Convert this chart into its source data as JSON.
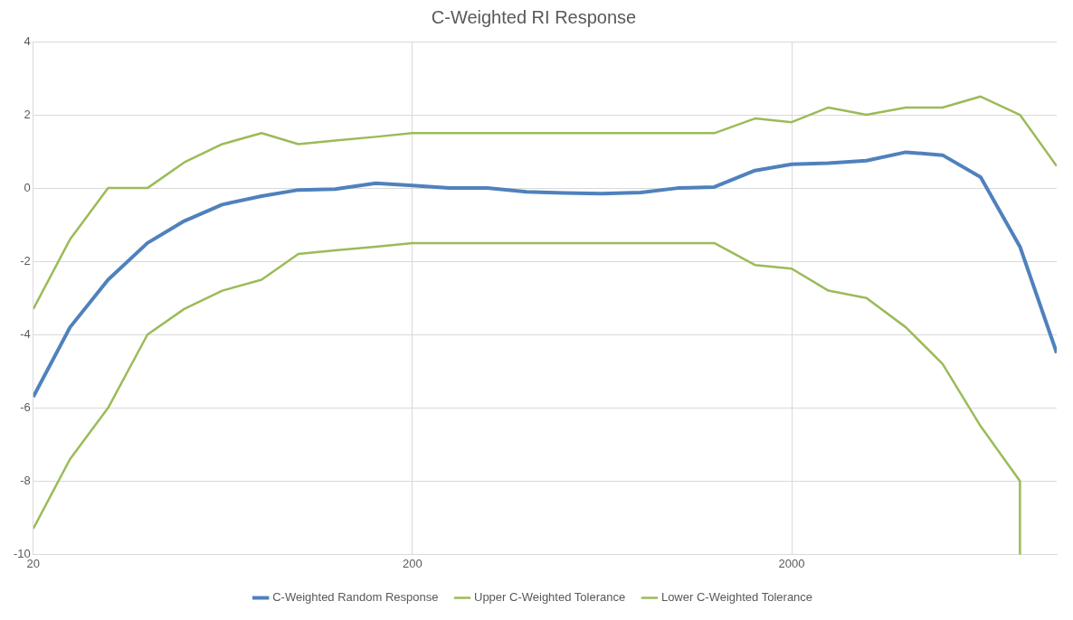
{
  "chart_data": {
    "type": "line",
    "title": "C-Weighted RI Response",
    "log": "x",
    "grid": true,
    "legend": "bottom",
    "marker": "none",
    "line_style": "solid",
    "x": [
      20,
      25,
      31.5,
      40,
      50,
      63,
      80,
      100,
      125,
      160,
      200,
      250,
      315,
      400,
      500,
      630,
      800,
      1000,
      1250,
      1600,
      2000,
      2500,
      3150,
      4000,
      5000,
      6300,
      8000,
      10000
    ],
    "xlim": [
      20,
      10000
    ],
    "xticks": [
      20,
      200,
      2000
    ],
    "ylim": [
      -10,
      4
    ],
    "yticks": [
      -10,
      -8,
      -6,
      -4,
      -2,
      0,
      2,
      4
    ],
    "series": [
      {
        "name": "C-Weighted Random Response",
        "color": "#4f81bd",
        "values": [
          -5.7,
          -3.8,
          -2.5,
          -1.5,
          -0.9,
          -0.45,
          -0.22,
          -0.05,
          -0.03,
          0.13,
          0.07,
          0,
          0,
          -0.1,
          -0.13,
          -0.15,
          -0.12,
          0,
          0.03,
          0.48,
          0.65,
          0.68,
          0.75,
          0.98,
          0.9,
          0.3,
          -1.6,
          -4.5
        ]
      },
      {
        "name": "Upper C-Weighted Tolerance",
        "color": "#9bbb59",
        "values": [
          -3.3,
          -1.4,
          0,
          0,
          0.7,
          1.2,
          1.5,
          1.2,
          1.3,
          1.4,
          1.5,
          1.5,
          1.5,
          1.5,
          1.5,
          1.5,
          1.5,
          1.5,
          1.5,
          1.9,
          1.8,
          2.2,
          2,
          2.2,
          2.2,
          2.5,
          2,
          0.6
        ]
      },
      {
        "name": "Lower C-Weighted Tolerance",
        "color": "#9bbb59",
        "x": [
          20,
          25,
          31.5,
          40,
          50,
          63,
          80,
          100,
          125,
          160,
          200,
          250,
          315,
          400,
          500,
          630,
          800,
          1000,
          1250,
          1600,
          2000,
          2500,
          3150,
          4000,
          5000,
          6300,
          8000,
          8000
        ],
        "values": [
          -9.3,
          -7.4,
          -6,
          -4,
          -3.3,
          -2.8,
          -2.5,
          -1.8,
          -1.7,
          -1.6,
          -1.5,
          -1.5,
          -1.5,
          -1.5,
          -1.5,
          -1.5,
          -1.5,
          -1.5,
          -1.5,
          -2.1,
          -2.2,
          -2.8,
          -3,
          -3.8,
          -4.8,
          -6.5,
          -8,
          -10
        ]
      }
    ]
  }
}
